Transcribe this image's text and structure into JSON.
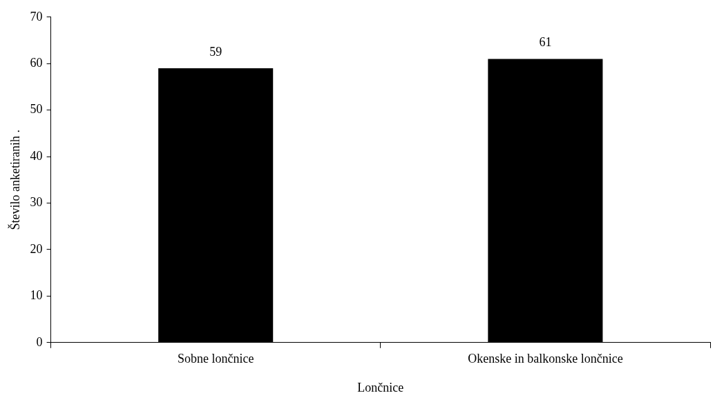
{
  "chart_data": {
    "type": "bar",
    "xlabel": "Lončnice",
    "ylabel": "Število anketiranih .",
    "categories": [
      "Sobne lončnice",
      "Okenske in balkonske lončnice"
    ],
    "values": [
      59,
      61
    ],
    "color": "#000000",
    "ylim": [
      0,
      70
    ],
    "yticks": [
      0,
      10,
      20,
      30,
      40,
      50,
      60,
      70
    ],
    "grid": false,
    "legend": false,
    "data_labels": true
  }
}
